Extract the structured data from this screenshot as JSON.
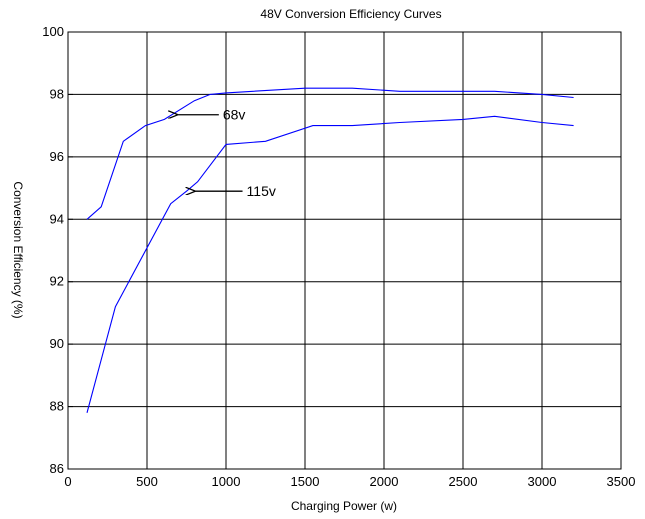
{
  "chart_data": {
    "type": "line",
    "title": "48V Conversion Efficiency Curves",
    "xlabel": "Charging Power (w)",
    "ylabel": "Conversion Efficiency (%)",
    "xlim": [
      0,
      3500
    ],
    "ylim": [
      86,
      100
    ],
    "xticks": [
      0,
      500,
      1000,
      1500,
      2000,
      2500,
      3000,
      3500
    ],
    "yticks": [
      86,
      88,
      90,
      92,
      94,
      96,
      98,
      100
    ],
    "grid": true,
    "legend": "none",
    "series": [
      {
        "x": [
          120,
          210,
          350,
          490,
          610,
          800,
          900,
          1000,
          1500,
          1800,
          2100,
          2700,
          3000,
          3200
        ],
        "y": [
          94.0,
          94.4,
          96.5,
          97.0,
          97.2,
          97.8,
          98.0,
          98.05,
          98.2,
          98.2,
          98.1,
          98.1,
          98.0,
          97.9
        ],
        "color": "#0000ff"
      },
      {
        "x": [
          120,
          300,
          650,
          750,
          820,
          1000,
          1250,
          1550,
          1800,
          2100,
          2500,
          2700,
          3000,
          3200
        ],
        "y": [
          87.8,
          91.2,
          94.5,
          94.9,
          95.2,
          96.4,
          96.5,
          97.0,
          97.0,
          97.1,
          97.2,
          97.3,
          97.1,
          97.0
        ],
        "color": "#0000ff"
      }
    ],
    "annotations": [
      {
        "text": "68v",
        "arrow_x": 690,
        "arrow_y": 97.35,
        "text_x": 980,
        "text_y": 97.35
      },
      {
        "text": "115v",
        "arrow_x": 800,
        "arrow_y": 94.9,
        "text_x": 1130,
        "text_y": 94.9
      }
    ]
  }
}
